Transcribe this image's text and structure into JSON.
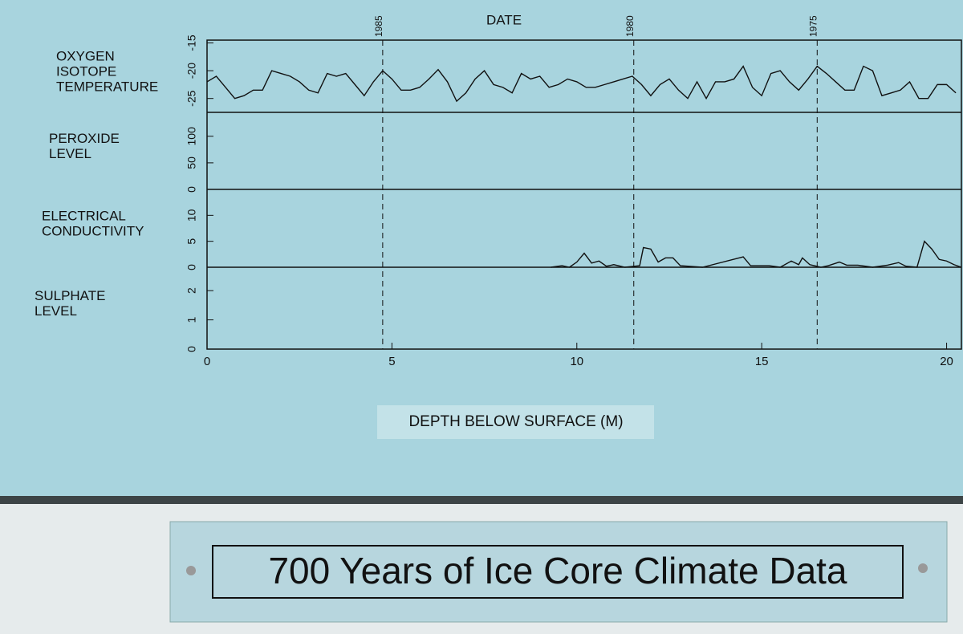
{
  "chart_data": [
    {
      "type": "line",
      "label_lines": [
        "OXYGEN",
        "ISOTOPE",
        "TEMPERATURE"
      ],
      "ylim": [
        -27.5,
        -14.5
      ],
      "yticks": [
        -25,
        -20,
        -15
      ],
      "series": [
        {
          "color": "#111111",
          "x": [
            0,
            0.25,
            0.5,
            0.75,
            1,
            1.25,
            1.5,
            1.75,
            2,
            2.25,
            2.5,
            2.75,
            3,
            3.25,
            3.5,
            3.75,
            4,
            4.25,
            4.5,
            4.75,
            5,
            5.25,
            5.5,
            5.75,
            6,
            6.25,
            6.5,
            6.75,
            7,
            7.25,
            7.5,
            7.75,
            8,
            8.25,
            8.5,
            8.75,
            9,
            9.25,
            9.5,
            9.75,
            10,
            10.25,
            10.5,
            10.75,
            11,
            11.25,
            11.5,
            11.75,
            12,
            12.25,
            12.5,
            12.75,
            13,
            13.25,
            13.5,
            13.75,
            14,
            14.25,
            14.5,
            14.75,
            15,
            15.25,
            15.5,
            15.75,
            16,
            16.25,
            16.5,
            16.75,
            17,
            17.25,
            17.5,
            17.75,
            18,
            18.25,
            18.5,
            18.75,
            19,
            19.25,
            19.5,
            19.75,
            20,
            20.25
          ],
          "values": [
            -22,
            -21,
            -23,
            -25,
            -24.5,
            -23.5,
            -23.5,
            -20,
            -20.5,
            -21,
            -22,
            -23.5,
            -24,
            -20.5,
            -21,
            -20.5,
            -22.5,
            -24.5,
            -22,
            -20,
            -21.5,
            -23.5,
            -23.5,
            -23,
            -21.5,
            -19.8,
            -22,
            -25.5,
            -24,
            -21.5,
            -20,
            -22.5,
            -23,
            -24,
            -20.5,
            -21.5,
            -21,
            -23,
            -22.5,
            -21.5,
            -22,
            -23,
            -23,
            -22.5,
            -22,
            -21.5,
            -21,
            -22.5,
            -24.5,
            -22.5,
            -21.5,
            -23.5,
            -25,
            -22,
            -25,
            -22,
            -22,
            -21.5,
            -19.2,
            -23,
            -24.5,
            -20.5,
            -20,
            -22,
            -23.5,
            -21.5,
            -19.2,
            -20.5,
            -22,
            -23.5,
            -23.5,
            -19.2,
            -20,
            -24.5,
            -24,
            -23.5,
            -22,
            -25,
            -25,
            -22.5,
            -22.5,
            -24
          ]
        }
      ]
    },
    {
      "type": "line",
      "label_lines": [
        "PEROXIDE",
        "LEVEL"
      ],
      "ylim": [
        0,
        145
      ],
      "yticks": [
        0,
        50,
        100
      ],
      "series": []
    },
    {
      "type": "line",
      "label_lines": [
        "ELECTRICAL",
        "CONDUCTIVITY"
      ],
      "ylim": [
        0,
        15
      ],
      "yticks": [
        0,
        5,
        10
      ],
      "series": [
        {
          "color": "#111111",
          "x": [
            9.3,
            9.6,
            9.8,
            10.0,
            10.2,
            10.4,
            10.6,
            10.8,
            11.0,
            11.3,
            11.7,
            11.8,
            12.0,
            12.2,
            12.4,
            12.6,
            12.8,
            13.4,
            14.5,
            14.7,
            15.2,
            15.5,
            15.8,
            16.0,
            16.1,
            16.3,
            16.6,
            16.8,
            17.1,
            17.3,
            17.6,
            18.0,
            18.4,
            18.7,
            18.9,
            19.2,
            19.4,
            19.6,
            19.8,
            20.0,
            20.2,
            20.4
          ],
          "values": [
            0,
            0.3,
            0,
            1,
            2.7,
            0.8,
            1.2,
            0.2,
            0.5,
            0,
            0.3,
            3.8,
            3.5,
            1,
            1.8,
            1.8,
            0.3,
            0,
            2,
            0.3,
            0.3,
            0,
            1.2,
            0.5,
            1.8,
            0.5,
            0,
            0.3,
            1,
            0.4,
            0.4,
            0,
            0.4,
            0.9,
            0.2,
            0,
            5,
            3.5,
            1.5,
            1.2,
            0.5,
            0
          ]
        }
      ]
    },
    {
      "type": "line",
      "label_lines": [
        "SULPHATE",
        "LEVEL"
      ],
      "ylim": [
        0,
        2.8
      ],
      "yticks": [
        0,
        1,
        2
      ],
      "series": []
    }
  ],
  "date_axis": {
    "title": "DATE",
    "x": [
      4.75,
      11.54,
      16.5
    ],
    "labels": [
      1985,
      1980,
      1975
    ]
  },
  "depth_axis": {
    "label": "DEPTH BELOW SURFACE (M)",
    "xlim": [
      0,
      20.4
    ],
    "xticks": [
      0,
      5,
      10,
      15,
      20
    ]
  },
  "plaque": "700 Years of Ice Core Climate Data"
}
